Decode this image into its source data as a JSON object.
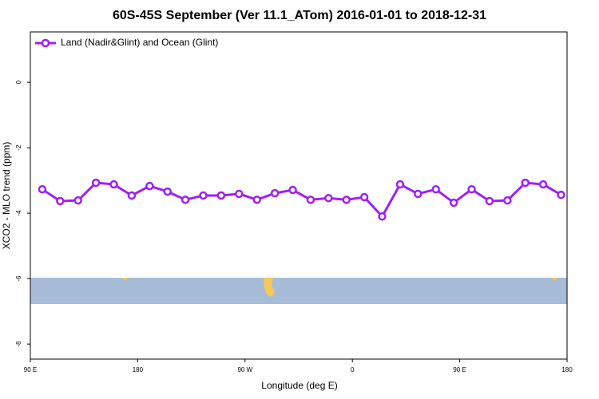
{
  "chart_data": {
    "type": "line",
    "title": "60S-45S September (Ver 11.1_ATom)   2016-01-01 to 2018-12-31",
    "x_label": "Longitude (deg E)",
    "y_label": "XCO2 - MLO trend (ppm)",
    "x": [
      100,
      115,
      130,
      145,
      160,
      175,
      190,
      205,
      220,
      235,
      250,
      265,
      280,
      295,
      310,
      325,
      340,
      355,
      370,
      385,
      400,
      415,
      430,
      445,
      460,
      475,
      490,
      505,
      520,
      535
    ],
    "series": [
      {
        "name": "Land (Nadir&Glint) and Ocean (Glint)",
        "color": "#a020f0",
        "values": [
          -3.27,
          -3.63,
          -3.61,
          -3.07,
          -3.12,
          -3.46,
          -3.17,
          -3.34,
          -3.59,
          -3.46,
          -3.46,
          -3.41,
          -3.59,
          -3.39,
          -3.29,
          -3.59,
          -3.54,
          -3.59,
          -3.51,
          -4.1,
          -3.12,
          -3.41,
          -3.27,
          -3.68,
          -3.27,
          -3.63,
          -3.61,
          -3.07,
          -3.12,
          -3.44
        ]
      }
    ],
    "xlim": [
      90,
      540
    ],
    "xticks": [
      {
        "value": 90,
        "label": "90 E"
      },
      {
        "value": 180,
        "label": "180"
      },
      {
        "value": 270,
        "label": "90 W"
      },
      {
        "value": 360,
        "label": "0"
      },
      {
        "value": 450,
        "label": "90 E"
      },
      {
        "value": 540,
        "label": "180"
      }
    ],
    "ylim": [
      -8.46,
      1.54
    ],
    "yticks": [
      0,
      -2,
      -4,
      -6,
      -8
    ],
    "legend": "top-left"
  }
}
